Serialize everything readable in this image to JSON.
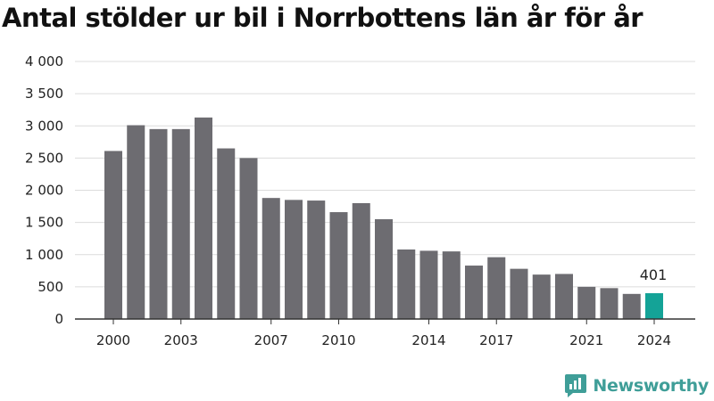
{
  "chart_data": {
    "type": "bar",
    "title": "Antal stölder ur bil i Norrbottens län år för år",
    "xlabel": "",
    "ylabel": "",
    "categories": [
      "2000",
      "2001",
      "2002",
      "2003",
      "2004",
      "2005",
      "2006",
      "2007",
      "2008",
      "2009",
      "2010",
      "2011",
      "2012",
      "2013",
      "2014",
      "2015",
      "2016",
      "2017",
      "2018",
      "2019",
      "2020",
      "2021",
      "2022",
      "2023",
      "2024"
    ],
    "x_tick_labels": [
      "2000",
      "2003",
      "2007",
      "2010",
      "2014",
      "2017",
      "2021",
      "2024"
    ],
    "values": [
      2610,
      3010,
      2950,
      2950,
      3130,
      2650,
      2500,
      1880,
      1850,
      1840,
      1660,
      1800,
      1550,
      1080,
      1060,
      1050,
      830,
      960,
      780,
      690,
      700,
      500,
      480,
      390,
      401
    ],
    "ylim": [
      0,
      4000
    ],
    "yticks": [
      0,
      500,
      1000,
      1500,
      2000,
      2500,
      3000,
      3500,
      4000
    ],
    "ytick_labels": [
      "0",
      "500",
      "1 000",
      "1 500",
      "2 000",
      "2 500",
      "3 000",
      "3 500",
      "4 000"
    ],
    "highlight_index": 24,
    "highlight_label": "401",
    "grid": true,
    "bar_color": "#6d6c71",
    "highlight_color": "#14a397"
  },
  "brand": {
    "name": "Newsworthy",
    "icon": "newsworthy-logo-icon",
    "color": "#3f9e98"
  }
}
